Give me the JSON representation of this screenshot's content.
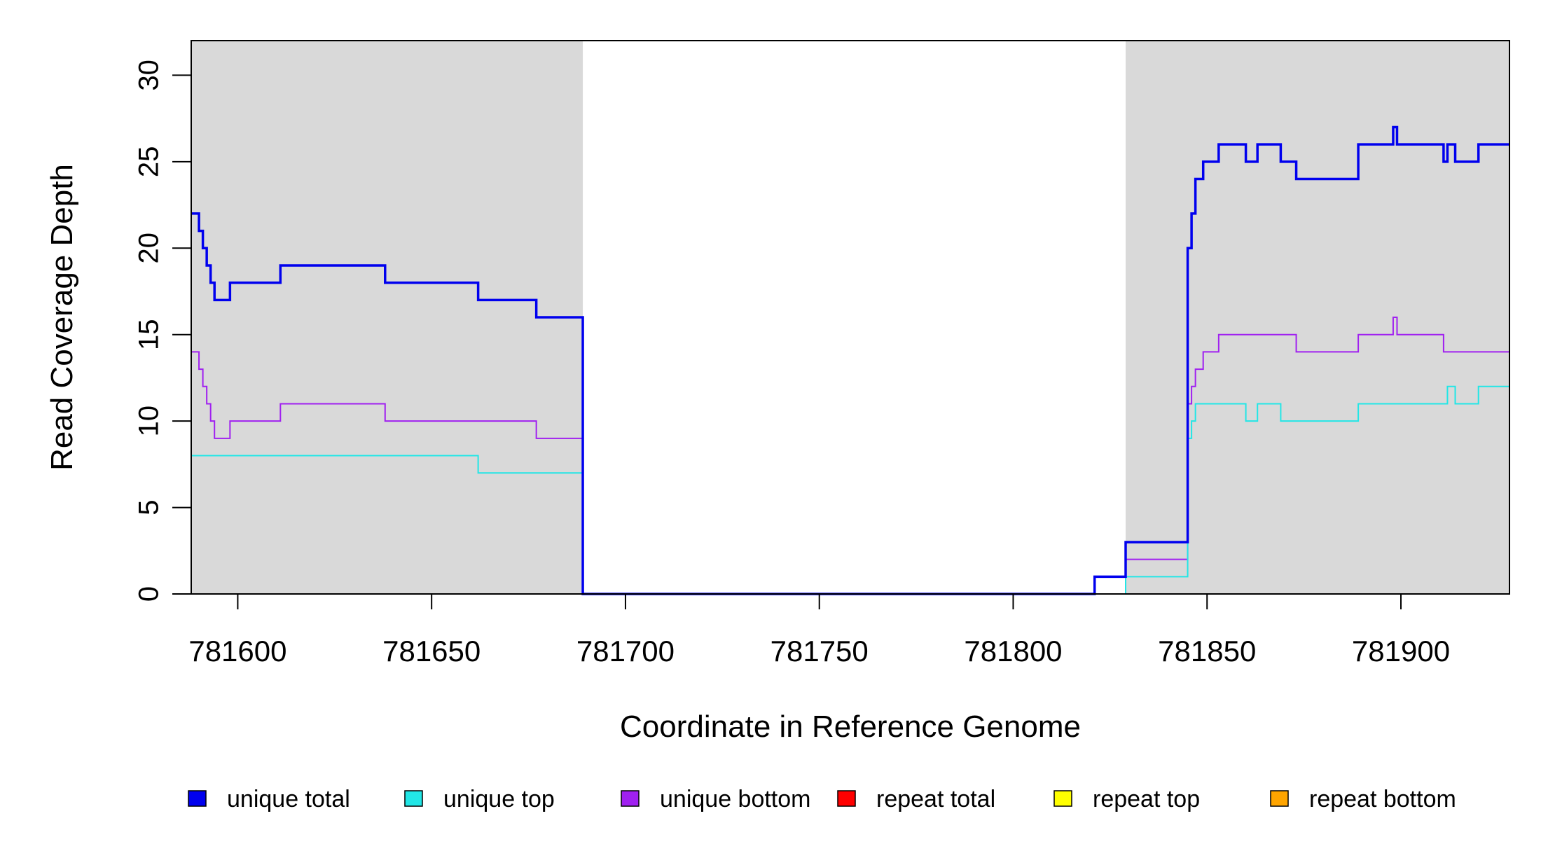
{
  "chart_data": {
    "type": "line",
    "xlabel": "Coordinate in Reference Genome",
    "ylabel": "Read Coverage Depth",
    "xlim": [
      781588,
      781928
    ],
    "ylim": [
      0,
      32
    ],
    "x_ticks": [
      781600,
      781650,
      781700,
      781750,
      781800,
      781850,
      781900
    ],
    "y_ticks": [
      0,
      5,
      10,
      15,
      20,
      25,
      30
    ],
    "x_tick_labels": [
      "781600",
      "781650",
      "781700",
      "781750",
      "781800",
      "781850",
      "781900"
    ],
    "y_tick_labels": [
      "0",
      "5",
      "10",
      "15",
      "20",
      "25",
      "30"
    ],
    "grid": false,
    "shaded_regions": [
      {
        "x_start": 781588,
        "x_end": 781689,
        "color": "#d9d9d9"
      },
      {
        "x_start": 781829,
        "x_end": 781928,
        "color": "#d9d9d9"
      }
    ],
    "legend_position": "bottom",
    "series": [
      {
        "name": "unique total",
        "color": "#0000ee",
        "stroke": 3.5,
        "x": [
          781588,
          781590,
          781591,
          781592,
          781593,
          781594,
          781595,
          781598,
          781611,
          781638,
          781662,
          781677,
          781689,
          781821,
          781829,
          781845,
          781846,
          781847,
          781849,
          781853,
          781860,
          781863,
          781869,
          781873,
          781889,
          781898,
          781899,
          781911,
          781912,
          781914,
          781920,
          781928
        ],
        "y": [
          22,
          21,
          20,
          19,
          18,
          17,
          17,
          18,
          19,
          18,
          17,
          16,
          0,
          1,
          3,
          20,
          22,
          24,
          25,
          26,
          25,
          26,
          25,
          24,
          26,
          27,
          26,
          25,
          26,
          25,
          26,
          26
        ]
      },
      {
        "name": "unique top",
        "color": "#22e6e6",
        "stroke": 2,
        "x": [
          781588,
          781662,
          781689,
          781829,
          781845,
          781846,
          781847,
          781849,
          781860,
          781863,
          781869,
          781889,
          781900,
          781912,
          781914,
          781920,
          781928
        ],
        "y": [
          8,
          7,
          0,
          1,
          9,
          10,
          11,
          11,
          10,
          11,
          10,
          11,
          11,
          12,
          11,
          12,
          12
        ]
      },
      {
        "name": "unique bottom",
        "color": "#a020f0",
        "stroke": 2,
        "x": [
          781588,
          781590,
          781591,
          781592,
          781593,
          781594,
          781598,
          781611,
          781638,
          781677,
          781689,
          781821,
          781829,
          781845,
          781846,
          781847,
          781849,
          781853,
          781873,
          781889,
          781898,
          781899,
          781911,
          781928
        ],
        "y": [
          14,
          13,
          12,
          11,
          10,
          9,
          10,
          11,
          10,
          9,
          0,
          1,
          2,
          11,
          12,
          13,
          14,
          15,
          14,
          15,
          16,
          15,
          14,
          14
        ]
      },
      {
        "name": "repeat total",
        "color": "#ff0000",
        "stroke": 2,
        "x": [
          781588,
          781928
        ],
        "y": [
          0,
          0
        ]
      },
      {
        "name": "repeat top",
        "color": "#ffff00",
        "stroke": 2,
        "x": [
          781588,
          781928
        ],
        "y": [
          0,
          0
        ]
      },
      {
        "name": "repeat bottom",
        "color": "#ffa500",
        "stroke": 2,
        "x": [
          781588,
          781928
        ],
        "y": [
          0,
          0
        ]
      }
    ]
  }
}
